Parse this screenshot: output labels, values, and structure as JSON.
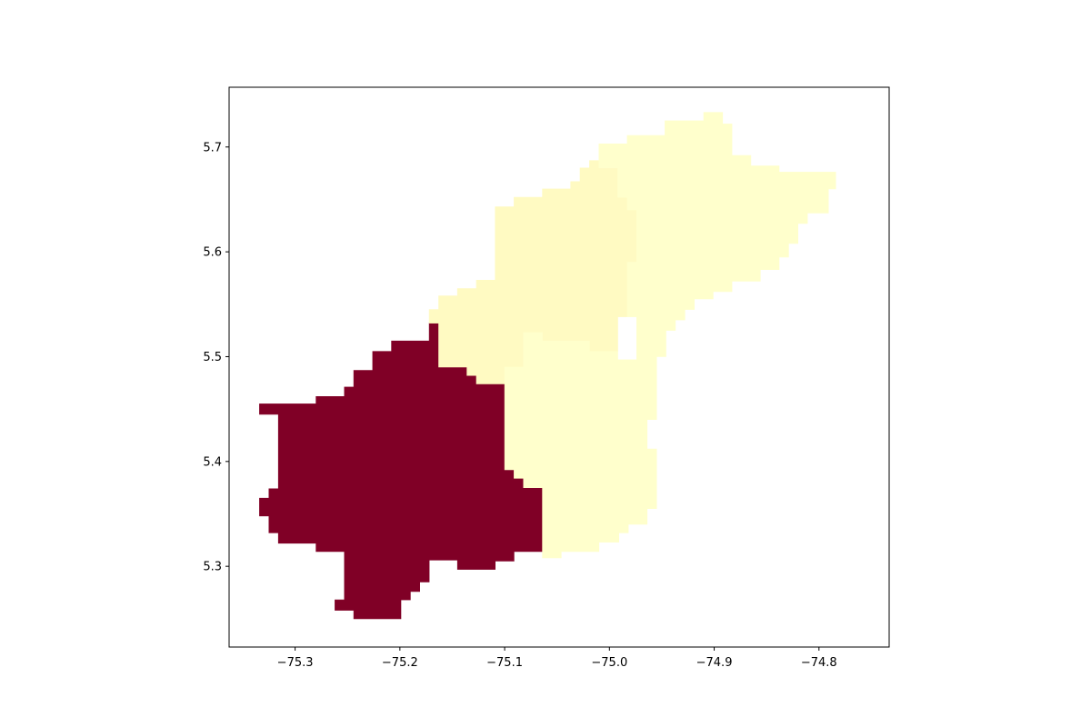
{
  "chart_data": {
    "type": "choropleth",
    "title": "",
    "xlabel": "",
    "ylabel": "",
    "xlim": [
      -75.363,
      -74.733
    ],
    "ylim": [
      5.223,
      5.757
    ],
    "grid": false,
    "legend": "none",
    "x_ticks": [
      {
        "value": -75.3,
        "label": "−75.3"
      },
      {
        "value": -75.2,
        "label": "−75.2"
      },
      {
        "value": -75.1,
        "label": "−75.1"
      },
      {
        "value": -75.0,
        "label": "−75.0"
      },
      {
        "value": -74.9,
        "label": "−74.9"
      },
      {
        "value": -74.8,
        "label": "−74.8"
      }
    ],
    "y_ticks": [
      {
        "value": 5.3,
        "label": "5.3"
      },
      {
        "value": 5.4,
        "label": "5.4"
      },
      {
        "value": 5.5,
        "label": "5.5"
      },
      {
        "value": 5.6,
        "label": "5.6"
      },
      {
        "value": 5.7,
        "label": "5.7"
      }
    ],
    "regions": [
      {
        "id": "south-west",
        "color": "#800026",
        "boundary": [
          [
            -75.334,
            5.455
          ],
          [
            -75.28,
            5.455
          ],
          [
            -75.28,
            5.462
          ],
          [
            -75.253,
            5.462
          ],
          [
            -75.253,
            5.471
          ],
          [
            -75.244,
            5.471
          ],
          [
            -75.244,
            5.487
          ],
          [
            -75.226,
            5.487
          ],
          [
            -75.226,
            5.505
          ],
          [
            -75.208,
            5.505
          ],
          [
            -75.208,
            5.515
          ],
          [
            -75.172,
            5.515
          ],
          [
            -75.172,
            5.532
          ],
          [
            -75.163,
            5.532
          ],
          [
            -75.163,
            5.49
          ],
          [
            -75.136,
            5.49
          ],
          [
            -75.136,
            5.482
          ],
          [
            -75.127,
            5.482
          ],
          [
            -75.127,
            5.474
          ],
          [
            -75.1,
            5.474
          ],
          [
            -75.1,
            5.392
          ],
          [
            -75.091,
            5.392
          ],
          [
            -75.091,
            5.384
          ],
          [
            -75.082,
            5.384
          ],
          [
            -75.082,
            5.375
          ],
          [
            -75.064,
            5.375
          ],
          [
            -75.064,
            5.314
          ],
          [
            -75.091,
            5.314
          ],
          [
            -75.091,
            5.305
          ],
          [
            -75.109,
            5.305
          ],
          [
            -75.109,
            5.297
          ],
          [
            -75.145,
            5.297
          ],
          [
            -75.145,
            5.306
          ],
          [
            -75.172,
            5.306
          ],
          [
            -75.172,
            5.285
          ],
          [
            -75.181,
            5.285
          ],
          [
            -75.181,
            5.276
          ],
          [
            -75.19,
            5.276
          ],
          [
            -75.19,
            5.268
          ],
          [
            -75.199,
            5.268
          ],
          [
            -75.199,
            5.25
          ],
          [
            -75.244,
            5.25
          ],
          [
            -75.244,
            5.258
          ],
          [
            -75.262,
            5.258
          ],
          [
            -75.262,
            5.268
          ],
          [
            -75.253,
            5.268
          ],
          [
            -75.253,
            5.314
          ],
          [
            -75.28,
            5.314
          ],
          [
            -75.28,
            5.322
          ],
          [
            -75.316,
            5.322
          ],
          [
            -75.316,
            5.332
          ],
          [
            -75.325,
            5.332
          ],
          [
            -75.325,
            5.348
          ],
          [
            -75.334,
            5.348
          ],
          [
            -75.334,
            5.365
          ],
          [
            -75.325,
            5.365
          ],
          [
            -75.325,
            5.374
          ],
          [
            -75.316,
            5.374
          ],
          [
            -75.316,
            5.445
          ],
          [
            -75.325,
            5.445
          ],
          [
            -75.325,
            5.445
          ],
          [
            -75.334,
            5.445
          ]
        ]
      },
      {
        "id": "north-west",
        "color": "#fffac2",
        "boundary": [
          [
            -75.163,
            5.532
          ],
          [
            -75.172,
            5.532
          ],
          [
            -75.172,
            5.545
          ],
          [
            -75.163,
            5.545
          ],
          [
            -75.163,
            5.558
          ],
          [
            -75.145,
            5.558
          ],
          [
            -75.145,
            5.565
          ],
          [
            -75.127,
            5.565
          ],
          [
            -75.127,
            5.573
          ],
          [
            -75.109,
            5.573
          ],
          [
            -75.109,
            5.643
          ],
          [
            -75.091,
            5.643
          ],
          [
            -75.091,
            5.652
          ],
          [
            -75.064,
            5.652
          ],
          [
            -75.064,
            5.66
          ],
          [
            -75.037,
            5.66
          ],
          [
            -75.037,
            5.667
          ],
          [
            -75.028,
            5.667
          ],
          [
            -75.028,
            5.68
          ],
          [
            -75.019,
            5.68
          ],
          [
            -75.019,
            5.687
          ],
          [
            -75.01,
            5.687
          ],
          [
            -75.01,
            5.68
          ],
          [
            -74.992,
            5.68
          ],
          [
            -74.992,
            5.652
          ],
          [
            -74.983,
            5.652
          ],
          [
            -74.983,
            5.64
          ],
          [
            -74.974,
            5.64
          ],
          [
            -74.974,
            5.59
          ],
          [
            -74.983,
            5.59
          ],
          [
            -74.983,
            5.538
          ],
          [
            -74.992,
            5.538
          ],
          [
            -74.992,
            5.505
          ],
          [
            -75.019,
            5.505
          ],
          [
            -75.019,
            5.515
          ],
          [
            -75.064,
            5.515
          ],
          [
            -75.064,
            5.523
          ],
          [
            -75.082,
            5.523
          ],
          [
            -75.082,
            5.49
          ],
          [
            -75.1,
            5.49
          ],
          [
            -75.1,
            5.474
          ],
          [
            -75.127,
            5.474
          ],
          [
            -75.127,
            5.482
          ],
          [
            -75.136,
            5.482
          ],
          [
            -75.136,
            5.49
          ],
          [
            -75.163,
            5.49
          ]
        ]
      },
      {
        "id": "north-east",
        "color": "#ffffcc",
        "boundary": [
          [
            -74.983,
            5.703
          ],
          [
            -74.983,
            5.711
          ],
          [
            -74.947,
            5.711
          ],
          [
            -74.947,
            5.725
          ],
          [
            -74.91,
            5.725
          ],
          [
            -74.91,
            5.733
          ],
          [
            -74.892,
            5.733
          ],
          [
            -74.892,
            5.722
          ],
          [
            -74.883,
            5.722
          ],
          [
            -74.883,
            5.692
          ],
          [
            -74.865,
            5.692
          ],
          [
            -74.865,
            5.682
          ],
          [
            -74.838,
            5.682
          ],
          [
            -74.838,
            5.676
          ],
          [
            -74.784,
            5.676
          ],
          [
            -74.784,
            5.66
          ],
          [
            -74.791,
            5.66
          ],
          [
            -74.791,
            5.637
          ],
          [
            -74.811,
            5.637
          ],
          [
            -74.811,
            5.627
          ],
          [
            -74.82,
            5.627
          ],
          [
            -74.82,
            5.608
          ],
          [
            -74.829,
            5.608
          ],
          [
            -74.829,
            5.595
          ],
          [
            -74.838,
            5.595
          ],
          [
            -74.838,
            5.583
          ],
          [
            -74.856,
            5.583
          ],
          [
            -74.856,
            5.572
          ],
          [
            -74.883,
            5.572
          ],
          [
            -74.883,
            5.562
          ],
          [
            -74.901,
            5.562
          ],
          [
            -74.901,
            5.555
          ],
          [
            -74.919,
            5.555
          ],
          [
            -74.919,
            5.545
          ],
          [
            -74.928,
            5.545
          ],
          [
            -74.928,
            5.535
          ],
          [
            -74.937,
            5.535
          ],
          [
            -74.937,
            5.525
          ],
          [
            -74.946,
            5.525
          ],
          [
            -74.946,
            5.5
          ],
          [
            -74.955,
            5.5
          ],
          [
            -74.955,
            5.48
          ],
          [
            -74.974,
            5.48
          ],
          [
            -74.974,
            5.538
          ],
          [
            -74.983,
            5.538
          ],
          [
            -74.983,
            5.59
          ],
          [
            -74.974,
            5.59
          ],
          [
            -74.974,
            5.64
          ],
          [
            -74.983,
            5.64
          ],
          [
            -74.983,
            5.652
          ],
          [
            -74.992,
            5.652
          ],
          [
            -74.992,
            5.68
          ],
          [
            -75.01,
            5.68
          ],
          [
            -75.01,
            5.703
          ]
        ]
      },
      {
        "id": "south-east",
        "color": "#ffffcc",
        "boundary": [
          [
            -75.1,
            5.49
          ],
          [
            -75.082,
            5.49
          ],
          [
            -75.082,
            5.523
          ],
          [
            -75.064,
            5.523
          ],
          [
            -75.064,
            5.515
          ],
          [
            -75.019,
            5.515
          ],
          [
            -75.019,
            5.505
          ],
          [
            -74.992,
            5.505
          ],
          [
            -74.992,
            5.497
          ],
          [
            -74.955,
            5.497
          ],
          [
            -74.955,
            5.485
          ],
          [
            -74.955,
            5.48
          ],
          [
            -74.955,
            5.445
          ],
          [
            -74.955,
            5.44
          ],
          [
            -74.964,
            5.44
          ],
          [
            -74.964,
            5.412
          ],
          [
            -74.955,
            5.412
          ],
          [
            -74.955,
            5.355
          ],
          [
            -74.964,
            5.355
          ],
          [
            -74.964,
            5.34
          ],
          [
            -74.982,
            5.34
          ],
          [
            -74.982,
            5.332
          ],
          [
            -74.991,
            5.332
          ],
          [
            -74.991,
            5.323
          ],
          [
            -75.01,
            5.323
          ],
          [
            -75.01,
            5.314
          ],
          [
            -75.046,
            5.314
          ],
          [
            -75.046,
            5.308
          ],
          [
            -75.064,
            5.308
          ],
          [
            -75.064,
            5.375
          ],
          [
            -75.082,
            5.375
          ],
          [
            -75.082,
            5.384
          ],
          [
            -75.091,
            5.384
          ],
          [
            -75.091,
            5.392
          ],
          [
            -75.1,
            5.392
          ]
        ]
      }
    ]
  }
}
